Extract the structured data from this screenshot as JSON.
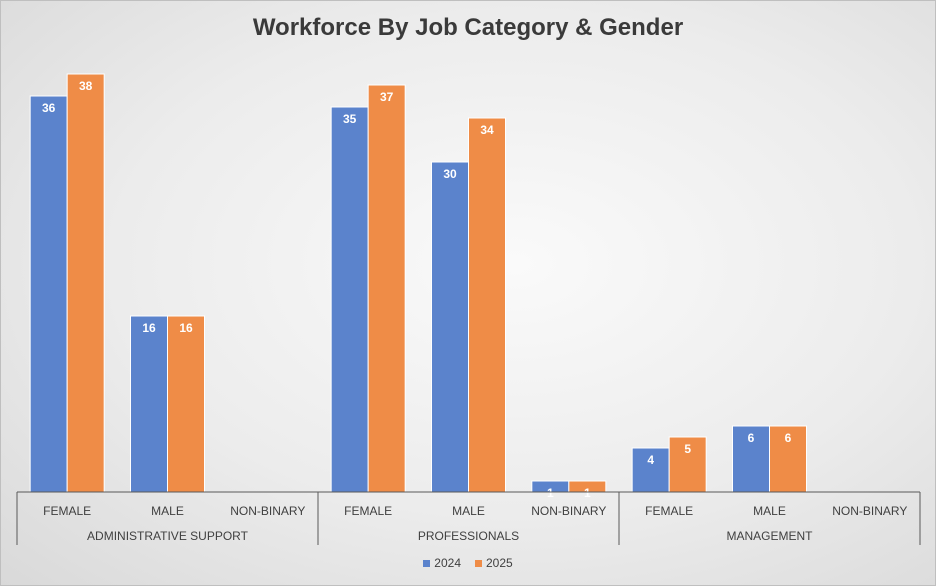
{
  "chart_data": {
    "type": "bar",
    "title": "Workforce By Job Category & Gender",
    "groups": [
      {
        "name": "ADMINISTRATIVE SUPPORT",
        "categories": [
          "FEMALE",
          "MALE",
          "NON-BINARY"
        ]
      },
      {
        "name": "PROFESSIONALS",
        "categories": [
          "FEMALE",
          "MALE",
          "NON-BINARY"
        ]
      },
      {
        "name": "MANAGEMENT",
        "categories": [
          "FEMALE",
          "MALE",
          "NON-BINARY"
        ]
      }
    ],
    "series": [
      {
        "name": "2024",
        "color": "#5b83cc",
        "values": [
          36,
          16,
          null,
          35,
          30,
          1,
          4,
          6,
          null
        ]
      },
      {
        "name": "2025",
        "color": "#ef8c47",
        "values": [
          38,
          16,
          null,
          37,
          34,
          1,
          5,
          6,
          null
        ]
      }
    ],
    "ylim": [
      0,
      40
    ],
    "grid": false,
    "legend_position": "bottom"
  }
}
